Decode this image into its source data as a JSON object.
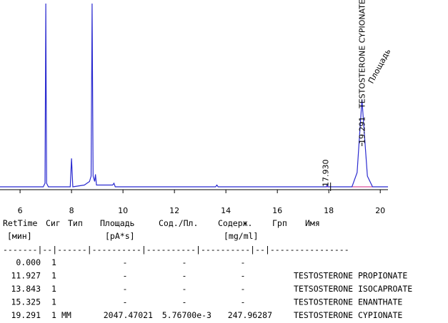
{
  "chart_data": {
    "type": "line",
    "xlim": [
      5.22,
      20.3
    ],
    "ylim": [
      0,
      105
    ],
    "xticks": [
      6,
      8,
      10,
      12,
      14,
      16,
      18,
      20
    ],
    "series": [
      {
        "color": "#2b2bd0",
        "x": [
          5.22,
          6.9,
          6.97,
          7.0,
          7.03,
          7.1,
          7.95,
          8.0,
          8.05,
          8.5,
          8.7,
          8.76,
          8.8,
          8.84,
          8.9,
          8.93,
          8.97,
          9.6,
          9.65,
          9.7,
          13.6,
          13.65,
          13.7,
          17.9,
          17.93,
          17.97,
          18.9,
          19.1,
          19.2,
          19.29,
          19.38,
          19.5,
          19.7,
          20.3
        ],
        "values": [
          0,
          0,
          2,
          103,
          2,
          0,
          0,
          16,
          0,
          1,
          3,
          6,
          103,
          6,
          3,
          7,
          1,
          1,
          2,
          0,
          0,
          1,
          0,
          0,
          1,
          0,
          0,
          8,
          30,
          49,
          30,
          6,
          0,
          0
        ]
      }
    ],
    "annotations": [
      {
        "label": "17.930",
        "x": 17.93
      },
      {
        "label": "19.291",
        "x": 19.291,
        "name": "TESTOSTERONE CYPIONATE",
        "note": "Площадь"
      }
    ]
  },
  "table": {
    "headers": [
      "RetTime",
      "Сиг",
      "Тип",
      "Площадь",
      "Сод./Пл.",
      "Содерж.",
      "Грп",
      "Имя"
    ],
    "units": [
      "[мин]",
      "[pA*s]",
      "[mg/ml]"
    ],
    "separator": "-------|--|------|----------|----------|----------|--|----------------",
    "rows": [
      [
        "0.000",
        "1",
        null,
        "-",
        "-",
        "-",
        null,
        null
      ],
      [
        "11.927",
        "1",
        null,
        "-",
        "-",
        "-",
        null,
        "TESTOSTERONE PROPIONATE"
      ],
      [
        "13.843",
        "1",
        null,
        "-",
        "-",
        "-",
        null,
        "TETSOSTERONE ISOCAPROATE"
      ],
      [
        "15.325",
        "1",
        null,
        "-",
        "-",
        "-",
        null,
        "TESTOSTERONE ENANTHATE"
      ],
      [
        "19.291",
        "1",
        "MM",
        "2047.47021",
        "5.76700e-3",
        "247.96287",
        null,
        "TESTOSTERONE CYPIONATE"
      ]
    ]
  }
}
